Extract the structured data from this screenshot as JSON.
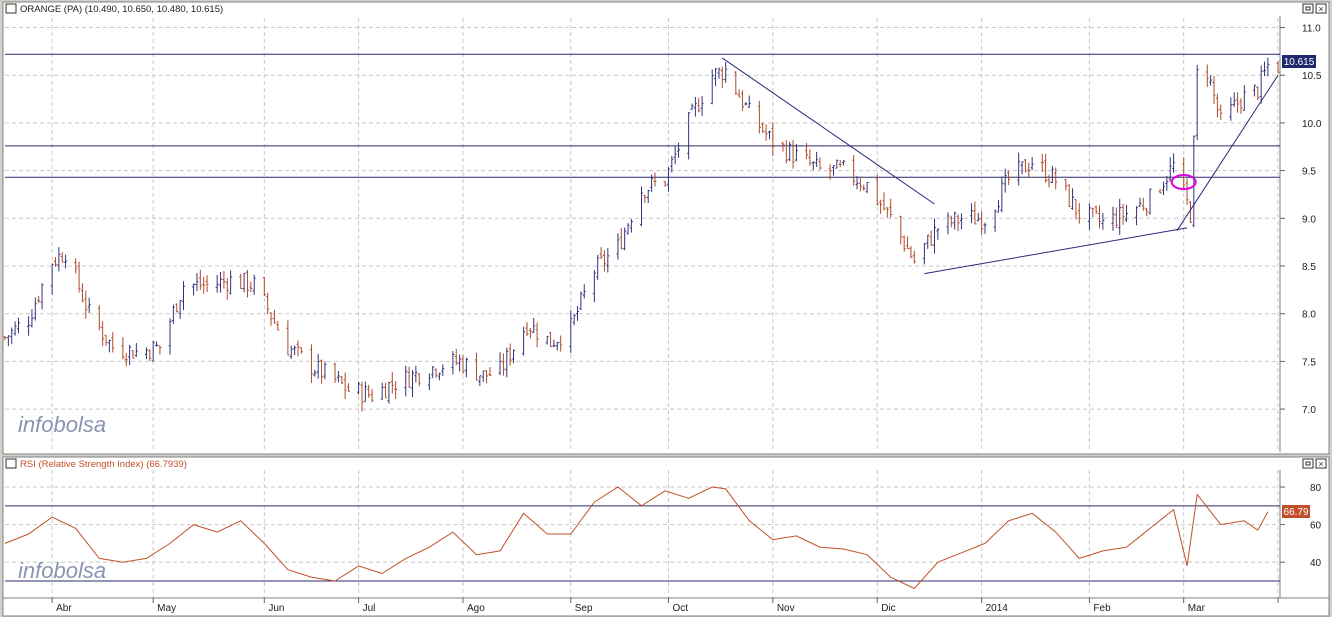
{
  "price_panel": {
    "title": "ORANGE (PA) (10.490, 10.650, 10.480, 10.615)",
    "last_value": "10.615",
    "watermark": "infobolsa"
  },
  "rsi_panel": {
    "title": "RSI (Relative Strength Index) (66.7939)",
    "last_value": "66.79",
    "watermark": "infobolsa"
  },
  "colors": {
    "up_bar": "#33337f",
    "down_bar": "#b04a2a",
    "rsi_line": "#c0502a",
    "trend_line": "#2a2a7a",
    "marker": "#e000e0",
    "value_box_price": "#1f2a6e",
    "value_box_rsi": "#c0502a"
  },
  "chart_data": [
    {
      "type": "ohlc",
      "series_label": "ORANGE (PA)",
      "last_bar": {
        "open": 10.49,
        "high": 10.65,
        "low": 10.48,
        "close": 10.615
      },
      "ylim": [
        6.55,
        11.1
      ],
      "y_ticks": [
        "7.0",
        "7.5",
        "8.0",
        "8.5",
        "9.0",
        "9.5",
        "10.0",
        "10.5",
        "11.0"
      ],
      "x_ticks": [
        "Abr",
        "May",
        "Jun",
        "Jul",
        "Ago",
        "Sep",
        "Oct",
        "Nov",
        "Dic",
        "2014",
        "Feb",
        "Mar"
      ],
      "x_start": "2013-03-18",
      "x_end": "2014-03-31",
      "grid": true,
      "close_path": [
        [
          "2013-03-18",
          7.75
        ],
        [
          "2013-03-25",
          7.95
        ],
        [
          "2013-04-01",
          8.55
        ],
        [
          "2013-04-05",
          8.65
        ],
        [
          "2013-04-12",
          8.0
        ],
        [
          "2013-04-19",
          7.65
        ],
        [
          "2013-04-26",
          7.6
        ],
        [
          "2013-05-03",
          7.65
        ],
        [
          "2013-05-10",
          8.3
        ],
        [
          "2013-05-17",
          8.3
        ],
        [
          "2013-05-24",
          8.35
        ],
        [
          "2013-05-31",
          8.3
        ],
        [
          "2013-06-04",
          8.05
        ],
        [
          "2013-06-10",
          7.65
        ],
        [
          "2013-06-17",
          7.45
        ],
        [
          "2013-06-24",
          7.3
        ],
        [
          "2013-06-28",
          7.2
        ],
        [
          "2013-07-05",
          7.15
        ],
        [
          "2013-07-10",
          7.25
        ],
        [
          "2013-07-17",
          7.35
        ],
        [
          "2013-07-24",
          7.45
        ],
        [
          "2013-07-31",
          7.5
        ],
        [
          "2013-08-07",
          7.35
        ],
        [
          "2013-08-12",
          7.4
        ],
        [
          "2013-08-20",
          7.9
        ],
        [
          "2013-08-27",
          7.7
        ],
        [
          "2013-09-02",
          7.85
        ],
        [
          "2013-09-09",
          8.45
        ],
        [
          "2013-09-16",
          8.7
        ],
        [
          "2013-09-23",
          9.3
        ],
        [
          "2013-09-30",
          9.4
        ],
        [
          "2013-10-07",
          10.0
        ],
        [
          "2013-10-14",
          10.5
        ],
        [
          "2013-10-18",
          10.55
        ],
        [
          "2013-10-25",
          10.1
        ],
        [
          "2013-11-01",
          9.8
        ],
        [
          "2013-11-08",
          9.65
        ],
        [
          "2013-11-15",
          9.5
        ],
        [
          "2013-11-22",
          9.5
        ],
        [
          "2013-11-29",
          9.35
        ],
        [
          "2013-12-06",
          9.0
        ],
        [
          "2013-12-13",
          8.55
        ],
        [
          "2013-12-20",
          8.9
        ],
        [
          "2013-12-27",
          9.0
        ],
        [
          "2014-01-03",
          9.0
        ],
        [
          "2014-01-10",
          9.4
        ],
        [
          "2014-01-17",
          9.6
        ],
        [
          "2014-01-24",
          9.4
        ],
        [
          "2014-01-31",
          9.05
        ],
        [
          "2014-02-07",
          8.95
        ],
        [
          "2014-02-14",
          9.05
        ],
        [
          "2014-02-21",
          9.2
        ],
        [
          "2014-02-28",
          9.55
        ],
        [
          "2014-03-05",
          9.05
        ],
        [
          "2014-03-07",
          10.5
        ],
        [
          "2014-03-10",
          10.55
        ],
        [
          "2014-03-14",
          10.0
        ],
        [
          "2014-03-20",
          10.25
        ],
        [
          "2014-03-25",
          10.35
        ],
        [
          "2014-03-28",
          10.6
        ]
      ],
      "horizontal_lines": [
        10.72,
        9.76,
        9.43
      ],
      "trend_lines": [
        {
          "from": [
            "2013-10-17",
            10.68
          ],
          "to": [
            "2013-12-19",
            9.15
          ]
        },
        {
          "from": [
            "2013-12-16",
            8.42
          ],
          "to": [
            "2014-03-04",
            8.9
          ]
        },
        {
          "from": [
            "2014-03-01",
            8.87
          ],
          "to": [
            "2014-03-31",
            10.5
          ]
        }
      ],
      "ellipse_marker": {
        "center": [
          "2014-03-03",
          9.38
        ]
      }
    },
    {
      "type": "line",
      "series_label": "RSI (Relative Strength Index)",
      "last_value": 66.79,
      "ylim": [
        22,
        88
      ],
      "y_ticks": [
        "40",
        "60",
        "80"
      ],
      "horizontal_lines": [
        70,
        30
      ],
      "grid": true,
      "path": [
        [
          "2013-03-18",
          50
        ],
        [
          "2013-03-25",
          55
        ],
        [
          "2013-04-01",
          64
        ],
        [
          "2013-04-08",
          58
        ],
        [
          "2013-04-15",
          42
        ],
        [
          "2013-04-22",
          40
        ],
        [
          "2013-04-29",
          42
        ],
        [
          "2013-05-06",
          50
        ],
        [
          "2013-05-13",
          60
        ],
        [
          "2013-05-20",
          56
        ],
        [
          "2013-05-27",
          62
        ],
        [
          "2013-06-03",
          50
        ],
        [
          "2013-06-10",
          36
        ],
        [
          "2013-06-17",
          32
        ],
        [
          "2013-06-24",
          30
        ],
        [
          "2013-07-01",
          38
        ],
        [
          "2013-07-08",
          34
        ],
        [
          "2013-07-15",
          42
        ],
        [
          "2013-07-22",
          48
        ],
        [
          "2013-07-29",
          56
        ],
        [
          "2013-08-05",
          44
        ],
        [
          "2013-08-12",
          46
        ],
        [
          "2013-08-19",
          66
        ],
        [
          "2013-08-26",
          55
        ],
        [
          "2013-09-02",
          55
        ],
        [
          "2013-09-09",
          72
        ],
        [
          "2013-09-16",
          80
        ],
        [
          "2013-09-23",
          70
        ],
        [
          "2013-09-30",
          78
        ],
        [
          "2013-10-07",
          74
        ],
        [
          "2013-10-14",
          80
        ],
        [
          "2013-10-18",
          79
        ],
        [
          "2013-10-25",
          62
        ],
        [
          "2013-11-01",
          52
        ],
        [
          "2013-11-08",
          54
        ],
        [
          "2013-11-15",
          48
        ],
        [
          "2013-11-22",
          47
        ],
        [
          "2013-11-29",
          44
        ],
        [
          "2013-12-06",
          32
        ],
        [
          "2013-12-13",
          26
        ],
        [
          "2013-12-20",
          40
        ],
        [
          "2013-12-27",
          45
        ],
        [
          "2014-01-03",
          50
        ],
        [
          "2014-01-10",
          62
        ],
        [
          "2014-01-17",
          66
        ],
        [
          "2014-01-24",
          56
        ],
        [
          "2014-01-31",
          42
        ],
        [
          "2014-02-07",
          46
        ],
        [
          "2014-02-14",
          48
        ],
        [
          "2014-02-21",
          58
        ],
        [
          "2014-02-28",
          68
        ],
        [
          "2014-03-04",
          38
        ],
        [
          "2014-03-07",
          76
        ],
        [
          "2014-03-14",
          60
        ],
        [
          "2014-03-21",
          62
        ],
        [
          "2014-03-25",
          57
        ],
        [
          "2014-03-28",
          66.79
        ]
      ]
    }
  ]
}
